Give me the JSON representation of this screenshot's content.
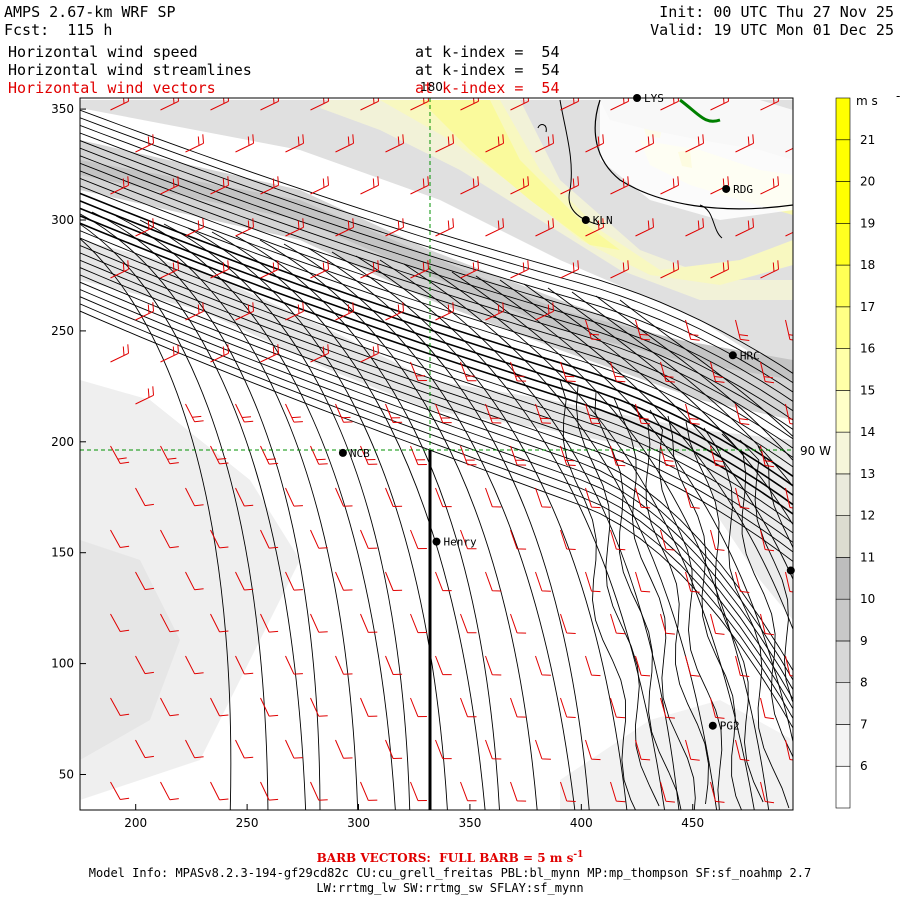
{
  "header": {
    "title": "AMPS 2.67-km WRF SP",
    "forecast": "Fcst:  115 h",
    "init": "Init: 00 UTC Thu 27 Nov 25",
    "valid": "Valid: 19 UTC Mon 01 Dec 25",
    "fields": [
      {
        "name": "Horizontal wind speed",
        "level": "at k-index =  54",
        "color": "black"
      },
      {
        "name": "Horizontal wind streamlines",
        "level": "at k-index =  54",
        "color": "black"
      },
      {
        "name": "Horizontal wind vectors",
        "level": "at k-index =  54",
        "color": "red"
      }
    ]
  },
  "footer": {
    "barb_note": "BARB VECTORS:  FULL BARB = 5 m s",
    "barb_sup": "-1",
    "model_info_1": "Model Info: MPASv8.2.3-194-gf29cd82c CU:cu_grell_freitas PBL:bl_mynn MP:mp_thompson SF:sf_noahmp 2.7",
    "model_info_2": "LW:rrtmg_lw SW:rrtmg_sw SFLAY:sf_mynn"
  },
  "map_labels": {
    "meridian_top": "180",
    "meridian_right": "90 W"
  },
  "stations": [
    {
      "id": "LYS",
      "x": 425,
      "y": 355
    },
    {
      "id": "RDG",
      "x": 465,
      "y": 314
    },
    {
      "id": "KLN",
      "x": 402,
      "y": 300
    },
    {
      "id": "HRC",
      "x": 468,
      "y": 239
    },
    {
      "id": "NCB",
      "x": 293,
      "y": 195
    },
    {
      "id": "Henry",
      "x": 335,
      "y": 155
    },
    {
      "id": "PG2",
      "x": 459,
      "y": 72
    },
    {
      "id": "",
      "x": 494,
      "y": 142
    }
  ],
  "colors": {
    "barb": "#e00000",
    "streamline": "#000000",
    "grid": "#009000",
    "coast": "#008000"
  },
  "chart_data": {
    "type": "heatmap",
    "title": "Horizontal wind speed / streamlines / vectors at k-index = 54",
    "xlabel": "",
    "ylabel": "",
    "x_ticks": [
      200,
      250,
      300,
      350,
      400,
      450
    ],
    "y_ticks": [
      50,
      100,
      150,
      200,
      250,
      300,
      350
    ],
    "xlim": [
      175,
      495
    ],
    "ylim": [
      34,
      355
    ],
    "colorbar": {
      "units": "m s",
      "units_sup": "-1",
      "levels": [
        6,
        7,
        8,
        9,
        10,
        11,
        12,
        13,
        14,
        15,
        16,
        17,
        18,
        19,
        20,
        21
      ],
      "colors": [
        "#ffffff",
        "#f4f4f4",
        "#e8e8e8",
        "#d8d8d8",
        "#c8c8c8",
        "#bdbdbd",
        "#dcdcd0",
        "#eaeadc",
        "#f6f6da",
        "#ffffc8",
        "#ffffa8",
        "#ffff85",
        "#ffff55",
        "#ffff20",
        "#ffff00",
        "#ffff00",
        "#ffff00"
      ]
    }
  }
}
